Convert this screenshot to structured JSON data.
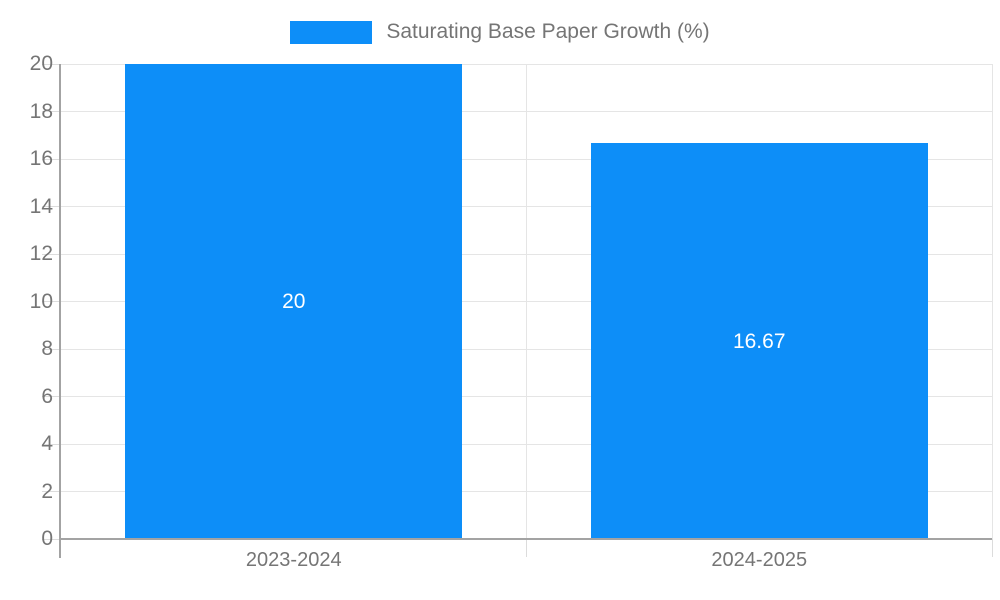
{
  "chart_data": {
    "type": "bar",
    "title": "",
    "legend_label": "Saturating Base Paper Growth (%)",
    "legend_position": "top",
    "categories": [
      "2023-2024",
      "2024-2025"
    ],
    "values": [
      20,
      16.67
    ],
    "value_labels": [
      "20",
      "16.67"
    ],
    "ylim": [
      0,
      20
    ],
    "ytick_step": 2,
    "yticks": [
      0,
      2,
      4,
      6,
      8,
      10,
      12,
      14,
      16,
      18,
      20
    ],
    "grid": true,
    "colors": {
      "bar": "#0d8ef8",
      "value_label": "#ffffff",
      "axis_text": "#757575",
      "legend_text": "#757575",
      "gridline": "#e5e5e5",
      "tick": "#dcdcdc",
      "axis_line": "#a3a3a3"
    }
  }
}
